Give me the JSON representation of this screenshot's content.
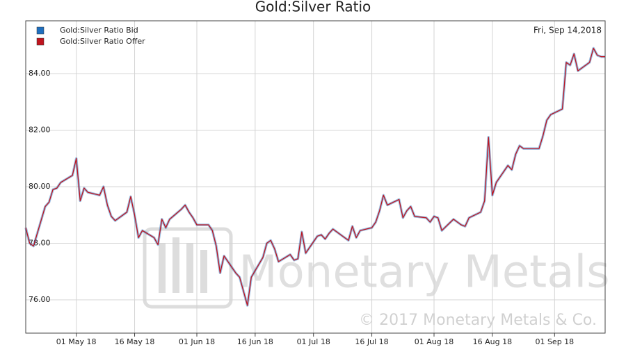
{
  "chart_data": {
    "type": "line",
    "title": "Gold:Silver Ratio",
    "annotation": "Fri, Sep 14,2018",
    "watermark": "Monetary Metals",
    "copyright": "© 2017 Monetary Metals & Co.",
    "grid": true,
    "legend": "top-left",
    "x": [
      "2018-04-18",
      "2018-04-19",
      "2018-04-20",
      "2018-04-23",
      "2018-04-24",
      "2018-04-25",
      "2018-04-26",
      "2018-04-27",
      "2018-04-30",
      "2018-05-01",
      "2018-05-02",
      "2018-05-03",
      "2018-05-04",
      "2018-05-07",
      "2018-05-08",
      "2018-05-09",
      "2018-05-10",
      "2018-05-11",
      "2018-05-14",
      "2018-05-15",
      "2018-05-16",
      "2018-05-17",
      "2018-05-18",
      "2018-05-21",
      "2018-05-22",
      "2018-05-23",
      "2018-05-24",
      "2018-05-25",
      "2018-05-28",
      "2018-05-29",
      "2018-05-30",
      "2018-05-31",
      "2018-06-01",
      "2018-06-04",
      "2018-06-05",
      "2018-06-06",
      "2018-06-07",
      "2018-06-08",
      "2018-06-11",
      "2018-06-12",
      "2018-06-13",
      "2018-06-14",
      "2018-06-15",
      "2018-06-18",
      "2018-06-19",
      "2018-06-20",
      "2018-06-21",
      "2018-06-22",
      "2018-06-25",
      "2018-06-26",
      "2018-06-27",
      "2018-06-28",
      "2018-06-29",
      "2018-07-02",
      "2018-07-03",
      "2018-07-04",
      "2018-07-05",
      "2018-07-06",
      "2018-07-09",
      "2018-07-10",
      "2018-07-11",
      "2018-07-12",
      "2018-07-13",
      "2018-07-16",
      "2018-07-17",
      "2018-07-18",
      "2018-07-19",
      "2018-07-20",
      "2018-07-23",
      "2018-07-24",
      "2018-07-25",
      "2018-07-26",
      "2018-07-27",
      "2018-07-30",
      "2018-07-31",
      "2018-08-01",
      "2018-08-02",
      "2018-08-03",
      "2018-08-06",
      "2018-08-07",
      "2018-08-08",
      "2018-08-09",
      "2018-08-10",
      "2018-08-13",
      "2018-08-14",
      "2018-08-15",
      "2018-08-16",
      "2018-08-17",
      "2018-08-20",
      "2018-08-21",
      "2018-08-22",
      "2018-08-23",
      "2018-08-24",
      "2018-08-27",
      "2018-08-28",
      "2018-08-29",
      "2018-08-30",
      "2018-08-31",
      "2018-09-03",
      "2018-09-04",
      "2018-09-05",
      "2018-09-06",
      "2018-09-07",
      "2018-09-10",
      "2018-09-11",
      "2018-09-12",
      "2018-09-13",
      "2018-09-14"
    ],
    "series": [
      {
        "name": "Gold:Silver Ratio Bid",
        "color": "#1f6fbf",
        "values": [
          78.55,
          78.0,
          77.9,
          79.3,
          79.45,
          79.9,
          79.95,
          80.15,
          80.4,
          81.0,
          79.5,
          79.95,
          79.8,
          79.7,
          80.0,
          79.35,
          78.95,
          78.8,
          79.1,
          79.65,
          79.0,
          78.2,
          78.45,
          78.2,
          77.95,
          78.85,
          78.55,
          78.85,
          79.2,
          79.35,
          79.1,
          78.9,
          78.65,
          78.65,
          78.45,
          77.9,
          76.95,
          77.55,
          76.95,
          76.8,
          76.3,
          75.8,
          76.8,
          77.5,
          78.0,
          78.1,
          77.8,
          77.35,
          77.6,
          77.4,
          77.45,
          78.4,
          77.65,
          78.25,
          78.3,
          78.15,
          78.35,
          78.5,
          78.2,
          78.1,
          78.6,
          78.2,
          78.45,
          78.55,
          78.75,
          79.15,
          79.7,
          79.35,
          79.55,
          78.9,
          79.15,
          79.3,
          78.95,
          78.9,
          78.75,
          78.95,
          78.9,
          78.45,
          78.85,
          78.75,
          78.65,
          78.6,
          78.9,
          79.1,
          79.5,
          81.75,
          79.7,
          80.15,
          80.75,
          80.6,
          81.15,
          81.45,
          81.35,
          81.35,
          81.35,
          81.8,
          82.35,
          82.55,
          82.75,
          84.4,
          84.3,
          84.7,
          84.1,
          84.4,
          84.9,
          84.65,
          84.6,
          84.6
        ]
      },
      {
        "name": "Gold:Silver Ratio Offer",
        "color": "#c0141e",
        "values": [
          78.55,
          78.0,
          77.9,
          79.3,
          79.45,
          79.9,
          79.95,
          80.15,
          80.4,
          81.0,
          79.5,
          79.95,
          79.8,
          79.7,
          80.0,
          79.35,
          78.95,
          78.8,
          79.1,
          79.65,
          79.0,
          78.2,
          78.45,
          78.2,
          77.95,
          78.85,
          78.55,
          78.85,
          79.2,
          79.35,
          79.1,
          78.9,
          78.65,
          78.65,
          78.45,
          77.9,
          76.95,
          77.55,
          76.95,
          76.8,
          76.3,
          75.8,
          76.8,
          77.5,
          78.0,
          78.1,
          77.8,
          77.35,
          77.6,
          77.4,
          77.45,
          78.4,
          77.65,
          78.25,
          78.3,
          78.15,
          78.35,
          78.5,
          78.2,
          78.1,
          78.6,
          78.2,
          78.45,
          78.55,
          78.75,
          79.15,
          79.7,
          79.35,
          79.55,
          78.9,
          79.15,
          79.3,
          78.95,
          78.9,
          78.75,
          78.95,
          78.9,
          78.45,
          78.85,
          78.75,
          78.65,
          78.6,
          78.9,
          79.1,
          79.5,
          81.75,
          79.7,
          80.15,
          80.75,
          80.6,
          81.15,
          81.45,
          81.35,
          81.35,
          81.35,
          81.8,
          82.35,
          82.55,
          82.75,
          84.4,
          84.3,
          84.7,
          84.1,
          84.4,
          84.9,
          84.65,
          84.6,
          84.6
        ]
      }
    ],
    "xlim": [
      "2018-04-18",
      "2018-09-14"
    ],
    "xticks": [
      {
        "value": "2018-05-01",
        "label": "01 May 18"
      },
      {
        "value": "2018-05-16",
        "label": "16 May 18"
      },
      {
        "value": "2018-06-01",
        "label": "01 Jun 18"
      },
      {
        "value": "2018-06-16",
        "label": "16 Jun 18"
      },
      {
        "value": "2018-07-01",
        "label": "01 Jul 18"
      },
      {
        "value": "2018-07-16",
        "label": "16 Jul 18"
      },
      {
        "value": "2018-08-01",
        "label": "01 Aug 18"
      },
      {
        "value": "2018-08-16",
        "label": "16 Aug 18"
      },
      {
        "value": "2018-09-01",
        "label": "01 Sep 18"
      }
    ],
    "ylim": [
      74.82,
      85.87
    ],
    "yticks": [
      {
        "value": 76,
        "label": "76.00"
      },
      {
        "value": 78,
        "label": "78.00"
      },
      {
        "value": 80,
        "label": "80.00"
      },
      {
        "value": 82,
        "label": "82.00"
      },
      {
        "value": 84,
        "label": "84.00"
      }
    ]
  }
}
